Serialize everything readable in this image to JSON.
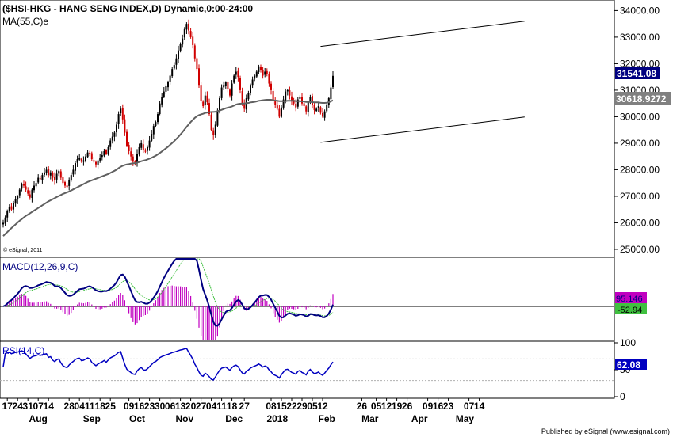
{
  "footer": "Published by eSignal (www.esignal.com)",
  "chart_data": [
    {
      "panel": "price",
      "type": "candlestick",
      "title": "($HSI-HKG - HANG SENG INDEX,D) Dynamic,0:00-24:00",
      "indicator_label": "MA(55,C)e",
      "watermark": "© eSignal, 2011",
      "ylim": [
        24700,
        34400
      ],
      "yticks": [
        "34000.00",
        "33000.00",
        "32000.00",
        "31000.00",
        "30000.00",
        "29000.00",
        "28000.00",
        "27000.00",
        "26000.00",
        "25000.00"
      ],
      "last_price_label": "31541.08",
      "ma_value_label": "30618.9272",
      "colors": {
        "up": "#000000",
        "down": "#d00000",
        "ma": "#606060",
        "price_badge": "#000080",
        "ma_badge": "#808080"
      },
      "close": [
        26000,
        26200,
        26450,
        26600,
        26500,
        26750,
        26900,
        27000,
        27250,
        27450,
        27400,
        27250,
        27100,
        26950,
        27250,
        27400,
        27500,
        27700,
        27650,
        27800,
        27900,
        28000,
        27800,
        27900,
        27700,
        27600,
        27850,
        27950,
        27700,
        27500,
        27400,
        27350,
        27600,
        27800,
        28000,
        28250,
        28400,
        28450,
        28300,
        28350,
        28500,
        28650,
        28600,
        28400,
        28300,
        28200,
        28350,
        28450,
        28550,
        28700,
        28600,
        28850,
        29100,
        29250,
        29400,
        29700,
        30100,
        30300,
        29900,
        29400,
        28900,
        28700,
        28500,
        28300,
        28250,
        28600,
        28850,
        29000,
        28750,
        28700,
        28850,
        29100,
        29350,
        29650,
        29800,
        30100,
        30500,
        30750,
        30950,
        31150,
        31300,
        31550,
        31800,
        31950,
        32200,
        32500,
        32750,
        32950,
        33300,
        33500,
        33250,
        33000,
        32700,
        32200,
        31800,
        31200,
        30600,
        30400,
        30800,
        30550,
        30100,
        29500,
        29300,
        29700,
        30200,
        30700,
        31100,
        31200,
        31300,
        31050,
        30800,
        31250,
        31550,
        31700,
        31500,
        31000,
        30500,
        30300,
        30700,
        30900,
        31200,
        31400,
        31550,
        31700,
        31900,
        31750,
        31550,
        31700,
        31600,
        31250,
        31000,
        30600,
        30450,
        30300,
        30000,
        30350,
        30650,
        30950,
        31000,
        30800,
        30600,
        30500,
        30350,
        30650,
        30750,
        30500,
        30400,
        30200,
        30550,
        30750,
        30450,
        30250,
        30300,
        30400,
        30150,
        30000,
        30200,
        30450,
        30700,
        31100,
        31541
      ],
      "ma": [
        25500,
        25580,
        25650,
        25730,
        25800,
        25870,
        25940,
        26010,
        26080,
        26140,
        26200,
        26260,
        26310,
        26360,
        26410,
        26460,
        26510,
        26560,
        26610,
        26660,
        26710,
        26760,
        26810,
        26850,
        26890,
        26930,
        26970,
        27010,
        27050,
        27090,
        27120,
        27150,
        27180,
        27220,
        27260,
        27300,
        27340,
        27380,
        27420,
        27460,
        27500,
        27540,
        27570,
        27600,
        27630,
        27660,
        27690,
        27720,
        27750,
        27780,
        27810,
        27840,
        27880,
        27920,
        27960,
        28000,
        28060,
        28110,
        28150,
        28180,
        28200,
        28210,
        28230,
        28240,
        28250,
        28270,
        28290,
        28320,
        28340,
        28360,
        28390,
        28420,
        28450,
        28490,
        28530,
        28580,
        28630,
        28690,
        28750,
        28810,
        28870,
        28940,
        29010,
        29080,
        29160,
        29240,
        29330,
        29420,
        29520,
        29620,
        29710,
        29800,
        29880,
        29960,
        30020,
        30060,
        30090,
        30110,
        30140,
        30160,
        30170,
        30180,
        30180,
        30190,
        30210,
        30230,
        30260,
        30290,
        30320,
        30340,
        30360,
        30390,
        30420,
        30460,
        30480,
        30490,
        30500,
        30500,
        30510,
        30520,
        30540,
        30550,
        30560,
        30580,
        30600,
        30610,
        30620,
        30630,
        30640,
        30640,
        30640,
        30620,
        30610,
        30600,
        30590,
        30590,
        30590,
        30590,
        30600,
        30600,
        30600,
        30600,
        30590,
        30590,
        30590,
        30580,
        30570,
        30560,
        30560,
        30560,
        30550,
        30540,
        30540,
        30540,
        30530,
        30520,
        30520,
        30530,
        30550,
        30580,
        30619
      ],
      "trendlines": [
        {
          "from": [
            154,
            32650
          ],
          "to": [
            253,
            33600
          ]
        },
        {
          "from": [
            154,
            29030
          ],
          "to": [
            253,
            29990
          ]
        }
      ]
    },
    {
      "panel": "macd",
      "type": "line",
      "title": "MACD(12,26,9,C)",
      "series_labels": [
        "95.146",
        "-52.94"
      ],
      "colors": {
        "macd": "#000080",
        "signal": "#40c040",
        "histogram": "#c000c0",
        "zero_line": "#000000"
      }
    },
    {
      "panel": "rsi",
      "type": "line",
      "title": "RSI(14,C)",
      "ylim": [
        0,
        100
      ],
      "yticks": [
        "100",
        "50",
        "0"
      ],
      "value_label": "62.08",
      "colors": {
        "rsi": "#0000c0",
        "levels": "#b0b0b0"
      }
    },
    {
      "panel": "xaxis",
      "type": "axis",
      "date_ticks": [
        {
          "label": "17",
          "idx": 2
        },
        {
          "label": "24",
          "idx": 7
        },
        {
          "label": "31",
          "idx": 12
        },
        {
          "label": "07",
          "idx": 17
        },
        {
          "label": "14",
          "idx": 22
        },
        {
          "label": "28",
          "idx": 32
        },
        {
          "label": "04",
          "idx": 37
        },
        {
          "label": "11",
          "idx": 42
        },
        {
          "label": "18",
          "idx": 47
        },
        {
          "label": "25",
          "idx": 52
        },
        {
          "label": "09",
          "idx": 61
        },
        {
          "label": "16",
          "idx": 66
        },
        {
          "label": "23",
          "idx": 71
        },
        {
          "label": "30",
          "idx": 76
        },
        {
          "label": "06",
          "idx": 81
        },
        {
          "label": "13",
          "idx": 86
        },
        {
          "label": "20",
          "idx": 91
        },
        {
          "label": "27",
          "idx": 96
        },
        {
          "label": "04",
          "idx": 101
        },
        {
          "label": "11",
          "idx": 106
        },
        {
          "label": "18",
          "idx": 111
        },
        {
          "label": "27",
          "idx": 117
        },
        {
          "label": "08",
          "idx": 130
        },
        {
          "label": "15",
          "idx": 135
        },
        {
          "label": "22",
          "idx": 140
        },
        {
          "label": "29",
          "idx": 145
        },
        {
          "label": "05",
          "idx": 150
        },
        {
          "label": "12",
          "idx": 155
        },
        {
          "label": "26",
          "idx": 174
        },
        {
          "label": "05",
          "idx": 181
        },
        {
          "label": "12",
          "idx": 186
        },
        {
          "label": "19",
          "idx": 191
        },
        {
          "label": "26",
          "idx": 196
        },
        {
          "label": "09",
          "idx": 206
        },
        {
          "label": "16",
          "idx": 211
        },
        {
          "label": "23",
          "idx": 216
        },
        {
          "label": "07",
          "idx": 226
        },
        {
          "label": "14",
          "idx": 231
        }
      ],
      "month_labels": [
        {
          "label": "Aug",
          "idx": 17
        },
        {
          "label": "Sep",
          "idx": 43
        },
        {
          "label": "Oct",
          "idx": 65
        },
        {
          "label": "Nov",
          "idx": 88
        },
        {
          "label": "Dec",
          "idx": 112
        },
        {
          "label": "2018",
          "idx": 133
        },
        {
          "label": "Feb",
          "idx": 157
        },
        {
          "label": "Mar",
          "idx": 178
        },
        {
          "label": "Apr",
          "idx": 202
        },
        {
          "label": "May",
          "idx": 224
        }
      ]
    }
  ]
}
